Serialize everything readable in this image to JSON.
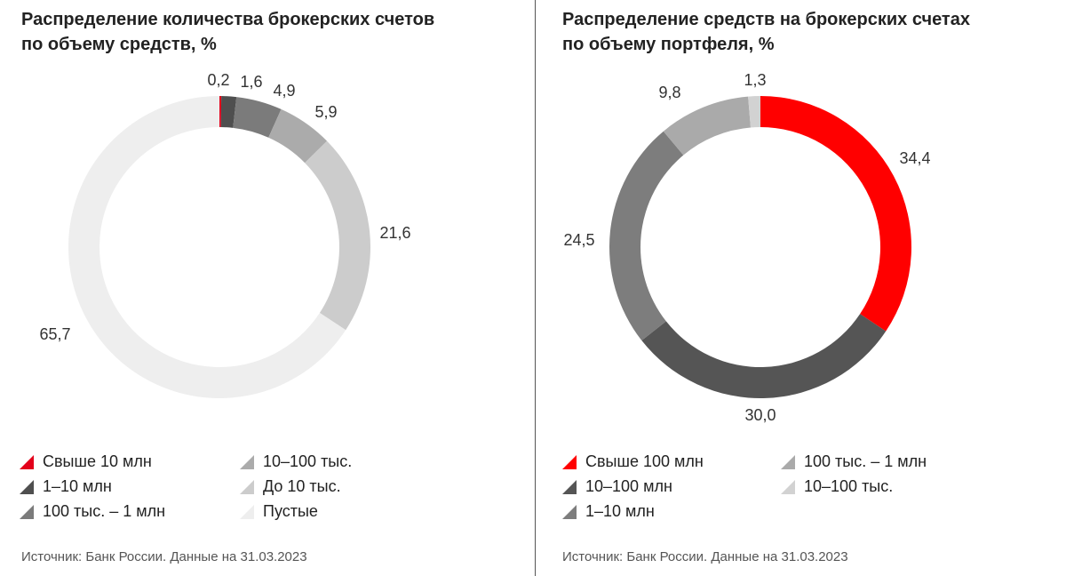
{
  "chart_data": [
    {
      "type": "pie",
      "title": [
        "Распределение количества брокерских счетов",
        "по объему средств, %"
      ],
      "categories": [
        "Свыше 10 млн",
        "1–10 млн",
        "100 тыс. – 1 млн",
        "10–100 тыс.",
        "До 10 тыс.",
        "Пустые"
      ],
      "values": [
        0.2,
        1.6,
        4.9,
        5.9,
        21.6,
        65.7
      ],
      "value_labels": [
        "0,2",
        "1,6",
        "4,9",
        "5,9",
        "21,6",
        "65,7"
      ],
      "colors": [
        "#e3001b",
        "#4f4f4f",
        "#7b7b7b",
        "#ababab",
        "#cccccc",
        "#eeeeee"
      ],
      "legend_placement": "bottom",
      "source": "Источник: Банк России. Данные на 31.03.2023"
    },
    {
      "type": "pie",
      "title": [
        "Распределение средств на брокерских счетах",
        "по объему портфеля, %"
      ],
      "categories": [
        "Свыше 100 млн",
        "10–100 млн",
        "1–10 млн",
        "100 тыс. – 1 млн",
        "10–100 тыс."
      ],
      "values": [
        34.4,
        30.0,
        24.5,
        9.8,
        1.3
      ],
      "value_labels": [
        "34,4",
        "30,0",
        "24,5",
        "9,8",
        "1,3"
      ],
      "colors": [
        "#ff0000",
        "#555555",
        "#7d7d7d",
        "#aaaaaa",
        "#d2d2d2"
      ],
      "legend_placement": "bottom",
      "source": "Источник: Банк России. Данные на 31.03.2023"
    }
  ]
}
